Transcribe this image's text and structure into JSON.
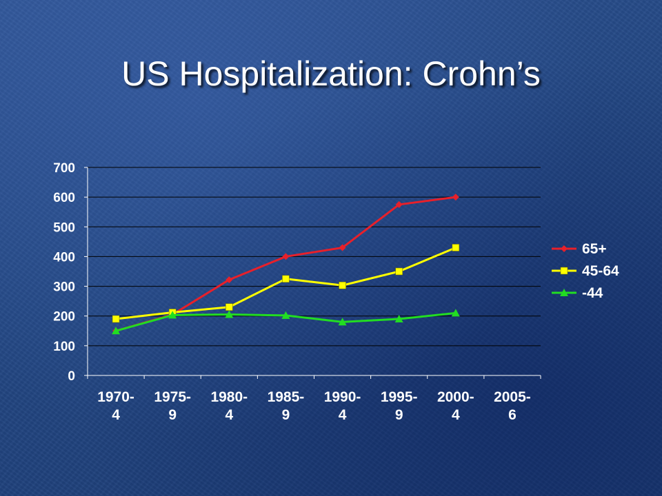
{
  "slide": {
    "title": "US Hospitalization: Crohn’s"
  },
  "chart_data": {
    "type": "line",
    "title": "",
    "xlabel": "",
    "ylabel": "",
    "ylim": [
      0,
      700
    ],
    "yticks": [
      0,
      100,
      200,
      300,
      400,
      500,
      600,
      700
    ],
    "categories": [
      [
        "1970-",
        "4"
      ],
      [
        "1975-",
        "9"
      ],
      [
        "1980-",
        "4"
      ],
      [
        "1985-",
        "9"
      ],
      [
        "1990-",
        "4"
      ],
      [
        "1995-",
        "9"
      ],
      [
        "2000-",
        "4"
      ],
      [
        "2005-",
        "6"
      ]
    ],
    "grid": "horizontal",
    "legend_position": "right",
    "series": [
      {
        "name": "65+",
        "color": "#e8202a",
        "marker": "diamond",
        "values": [
          150,
          205,
          322,
          400,
          430,
          575,
          600,
          null
        ]
      },
      {
        "name": "45-64",
        "color": "#ffff00",
        "marker": "square",
        "values": [
          190,
          212,
          230,
          325,
          303,
          350,
          430,
          null
        ]
      },
      {
        "name": "-44",
        "color": "#22dd22",
        "marker": "triangle",
        "values": [
          150,
          203,
          205,
          202,
          180,
          190,
          210,
          null
        ]
      }
    ]
  }
}
